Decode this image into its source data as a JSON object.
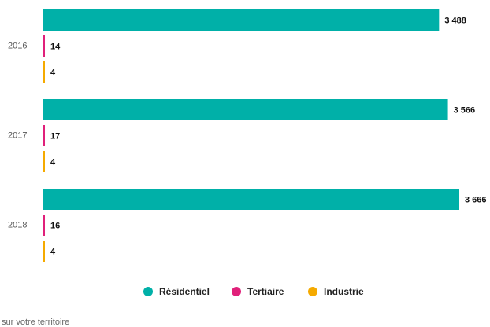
{
  "chart_data": {
    "type": "hbar",
    "categories": [
      "2016",
      "2017",
      "2018"
    ],
    "series": [
      {
        "name": "Résidentiel",
        "color": "#00b0a8",
        "values": [
          3488,
          3566,
          3666
        ],
        "value_labels": [
          "3 488",
          "3 566",
          "3 666"
        ]
      },
      {
        "name": "Tertiaire",
        "color": "#e0207a",
        "values": [
          14,
          17,
          16
        ]
      },
      {
        "name": "Industrie",
        "color": "#f5aa00",
        "values": [
          4,
          4,
          4
        ]
      }
    ],
    "legend": "bottom",
    "footnote": "sur votre territoire"
  }
}
